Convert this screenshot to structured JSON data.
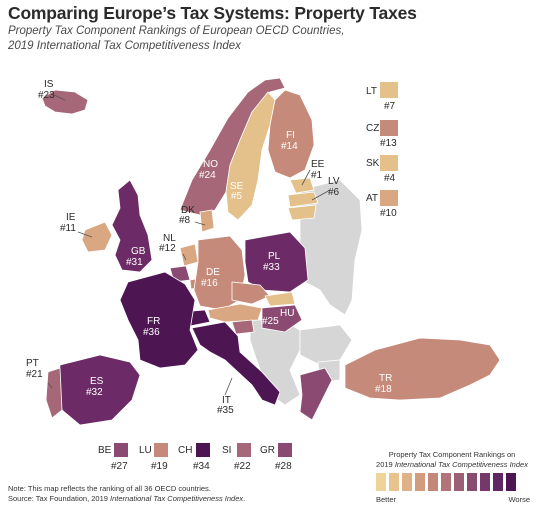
{
  "title": "Comparing Europe’s Tax Systems: Property Taxes",
  "subtitle_line1": "Property Tax Component Rankings of European OECD Countries,",
  "subtitle_line2": "2019 International Tax Competitiveness Index",
  "palette": {
    "rank_1_7": "#e4c08a",
    "rank_8_12": "#daa783",
    "rank_13_19": "#c68a7b",
    "rank_20_24": "#a66878",
    "rank_25_28": "#8b4a72",
    "rank_29_33": "#6c2b66",
    "rank_34_36": "#4e1553",
    "non_oecd": "#d6d6d6"
  },
  "countries": [
    {
      "code": "IS",
      "rank": "#23"
    },
    {
      "code": "NO",
      "rank": "#24"
    },
    {
      "code": "SE",
      "rank": "#5"
    },
    {
      "code": "FI",
      "rank": "#14"
    },
    {
      "code": "EE",
      "rank": "#1"
    },
    {
      "code": "LV",
      "rank": "#6"
    },
    {
      "code": "LT",
      "rank": "#7"
    },
    {
      "code": "IE",
      "rank": "#11"
    },
    {
      "code": "GB",
      "rank": "#31"
    },
    {
      "code": "DK",
      "rank": "#8"
    },
    {
      "code": "NL",
      "rank": "#12"
    },
    {
      "code": "DE",
      "rank": "#16"
    },
    {
      "code": "PL",
      "rank": "#33"
    },
    {
      "code": "CZ",
      "rank": "#13"
    },
    {
      "code": "SK",
      "rank": "#4"
    },
    {
      "code": "AT",
      "rank": "#10"
    },
    {
      "code": "HU",
      "rank": "#25"
    },
    {
      "code": "FR",
      "rank": "#36"
    },
    {
      "code": "IT",
      "rank": "#35"
    },
    {
      "code": "PT",
      "rank": "#21"
    },
    {
      "code": "ES",
      "rank": "#32"
    },
    {
      "code": "TR",
      "rank": "#18"
    },
    {
      "code": "BE",
      "rank": "#27"
    },
    {
      "code": "LU",
      "rank": "#19"
    },
    {
      "code": "CH",
      "rank": "#34"
    },
    {
      "code": "SI",
      "rank": "#22"
    },
    {
      "code": "GR",
      "rank": "#28"
    }
  ],
  "legend": {
    "title_line1": "Property Tax Component Rankings on",
    "title_line2_pre": "2019 ",
    "title_line2_italic": "International Tax Competitiveness Index",
    "better": "Better",
    "worse": "Worse",
    "swatches": [
      "#efd49a",
      "#e8c38e",
      "#e0b186",
      "#d49c7f",
      "#c4887b",
      "#b17479",
      "#9c6076",
      "#884c71",
      "#74386b",
      "#612764",
      "#4e1553"
    ]
  },
  "note": {
    "line1": "Note: This map reflects the ranking of all 36 OECD countries.",
    "line2_pre": "Source: Tax Foundation, 2019 ",
    "line2_italic": "International Tax Competitiveness Index",
    "line2_post": "."
  }
}
